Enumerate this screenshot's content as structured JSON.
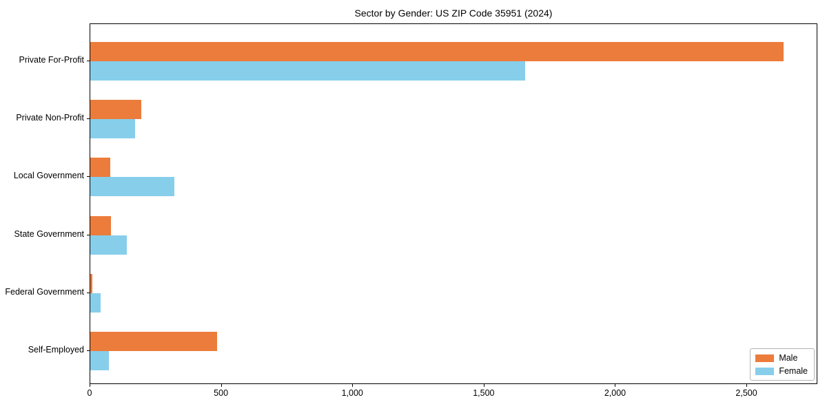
{
  "title": "Sector by Gender: US ZIP Code 35951 (2024)",
  "chart_data": {
    "type": "bar",
    "orientation": "horizontal",
    "title": "Sector by Gender: US ZIP Code 35951 (2024)",
    "xlabel": "",
    "ylabel": "",
    "categories": [
      "Private For-Profit",
      "Private Non-Profit",
      "Local Government",
      "State Government",
      "Federal Government",
      "Self-Employed"
    ],
    "series": [
      {
        "name": "Male",
        "color": "#EC7C3B",
        "values": [
          2640,
          195,
          75,
          78,
          8,
          483
        ]
      },
      {
        "name": "Female",
        "color": "#87CEEB",
        "values": [
          1655,
          170,
          320,
          138,
          40,
          72
        ]
      }
    ],
    "xlim": [
      0,
      2770
    ],
    "x_ticks": [
      0,
      500,
      1000,
      1500,
      2000,
      2500
    ],
    "x_tick_labels": [
      "0",
      "500",
      "1,000",
      "1,500",
      "2,000",
      "2,500"
    ],
    "grid": false,
    "legend_position": "lower right"
  }
}
